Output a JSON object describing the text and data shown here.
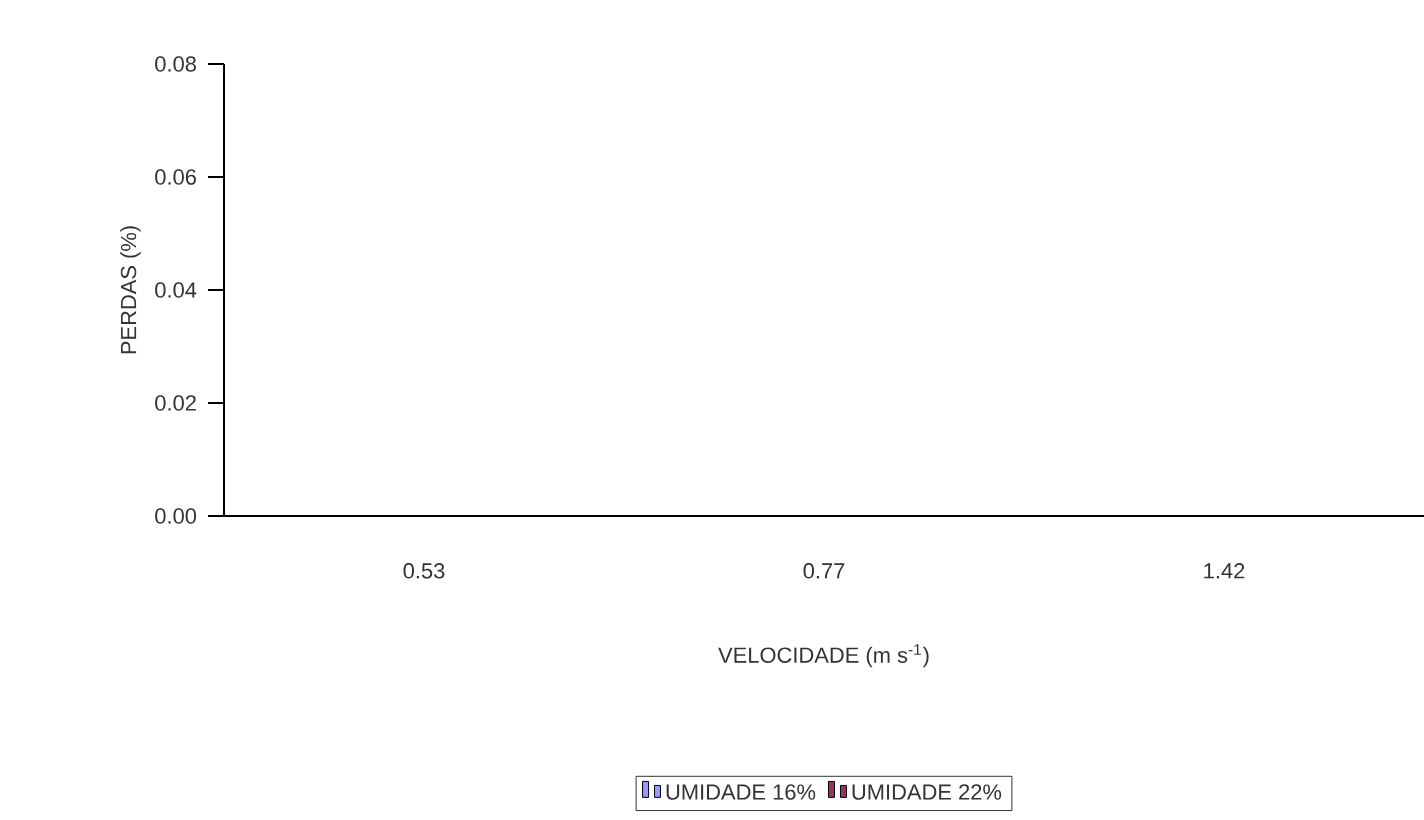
{
  "chart_data": {
    "type": "bar",
    "xlabel": "VELOCIDADE (m s$^{-1}$)",
    "ylabel": "PERDAS (%)",
    "categories": [
      "0.53",
      "0.77",
      "1.42"
    ],
    "series": [
      {
        "name": "UMIDADE 16%",
        "color": "#9999ff",
        "values": [
          0,
          0,
          0
        ]
      },
      {
        "name": "UMIDADE 22%",
        "color": "#993366",
        "values": [
          0,
          0,
          0
        ]
      }
    ],
    "ylim": [
      0,
      0.08
    ],
    "yticks": [
      {
        "value": 0,
        "label": "0.00"
      },
      {
        "value": 0.02,
        "label": "0.02"
      },
      {
        "value": 0.04,
        "label": "0.04"
      },
      {
        "value": 0.06,
        "label": "0.06"
      },
      {
        "value": 0.08,
        "label": "0.08"
      }
    ],
    "legend": "bottom"
  }
}
